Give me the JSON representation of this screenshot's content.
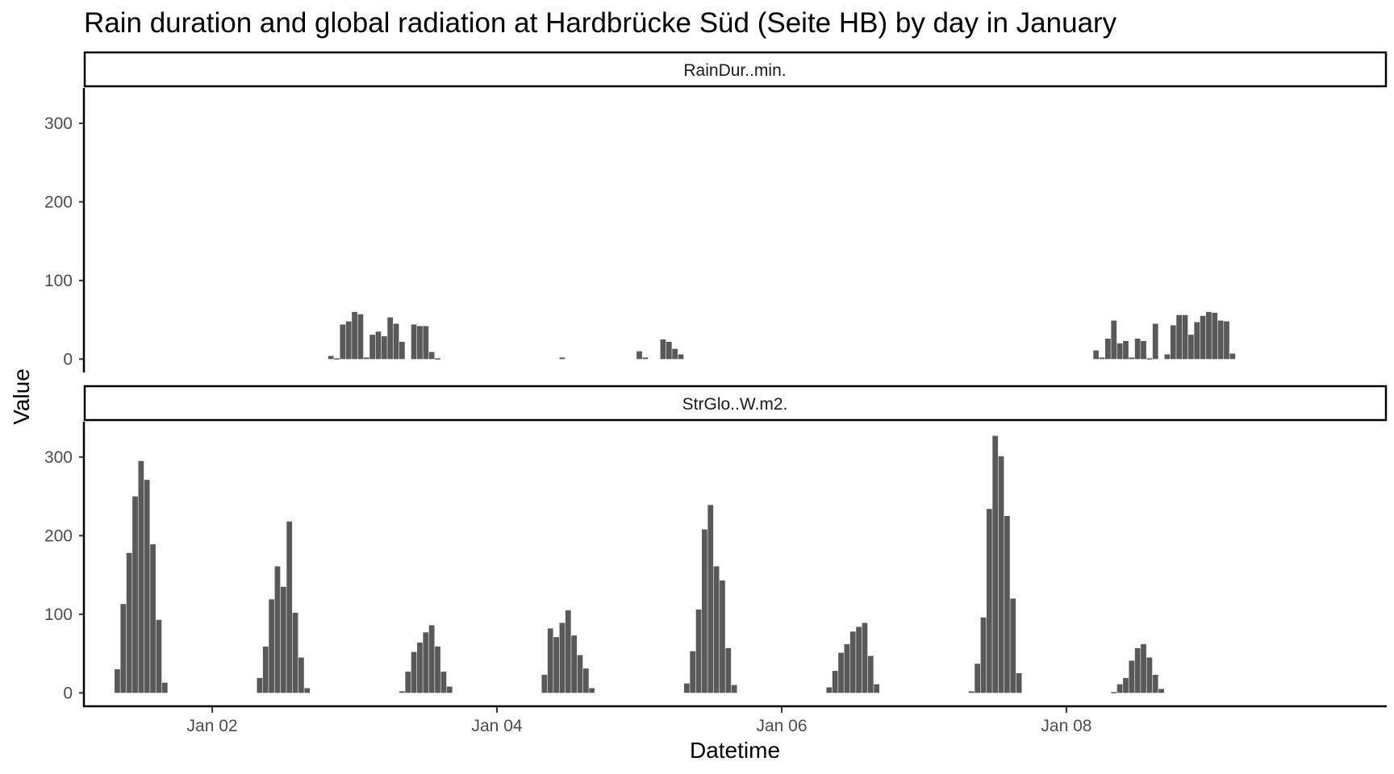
{
  "chart_data": {
    "type": "bar",
    "title": "Rain duration and global radiation at Hardbrücke Süd (Seite HB) by day in January",
    "xlabel": "Datetime",
    "ylabel": "Value",
    "x_ticks": [
      "Jan 02",
      "Jan 04",
      "Jan 06",
      "Jan 08"
    ],
    "y_ticks": [
      0,
      100,
      200,
      300
    ],
    "ylim": [
      -15,
      345
    ],
    "xlim": [
      "2024-01-01T02:30",
      "2024-01-10T06:00"
    ],
    "grid": false,
    "legend": "none",
    "bar_color": "#595959",
    "panels": [
      {
        "strip": "RainDur..min.",
        "series": [
          {
            "x": [
              "2024-01-02T20:00",
              "2024-01-02T21:00",
              "2024-01-02T22:00",
              "2024-01-02T23:00",
              "2024-01-03T00:00",
              "2024-01-03T01:00",
              "2024-01-03T02:00",
              "2024-01-03T03:00",
              "2024-01-03T04:00",
              "2024-01-03T05:00",
              "2024-01-03T06:00",
              "2024-01-03T07:00",
              "2024-01-03T08:00",
              "2024-01-03T10:00",
              "2024-01-03T11:00",
              "2024-01-03T12:00",
              "2024-01-03T13:00",
              "2024-01-03T14:00",
              "2024-01-04T11:00",
              "2024-01-05T00:00",
              "2024-01-05T01:00",
              "2024-01-05T04:00",
              "2024-01-05T05:00",
              "2024-01-05T06:00",
              "2024-01-05T07:00",
              "2024-01-08T05:00",
              "2024-01-08T06:00",
              "2024-01-08T07:00",
              "2024-01-08T08:00",
              "2024-01-08T09:00",
              "2024-01-08T10:00",
              "2024-01-08T11:00",
              "2024-01-08T12:00",
              "2024-01-08T13:00",
              "2024-01-08T14:00",
              "2024-01-08T15:00",
              "2024-01-08T17:00",
              "2024-01-08T18:00",
              "2024-01-08T19:00",
              "2024-01-08T20:00",
              "2024-01-08T21:00",
              "2024-01-08T22:00",
              "2024-01-08T23:00",
              "2024-01-09T00:00",
              "2024-01-09T01:00",
              "2024-01-09T02:00",
              "2024-01-09T03:00",
              "2024-01-09T04:00"
            ],
            "values": [
              4,
              1,
              44,
              48,
              60,
              57,
              2,
              31,
              35,
              29,
              53,
              45,
              22,
              44,
              42,
              42,
              9,
              1,
              2,
              10,
              2,
              25,
              22,
              13,
              6,
              11,
              2,
              26,
              49,
              20,
              23,
              2,
              26,
              23,
              1,
              45,
              6,
              43,
              56,
              56,
              31,
              47,
              55,
              60,
              59,
              49,
              48,
              7
            ]
          }
        ]
      },
      {
        "strip": "StrGlo..W.m2.",
        "series": [
          {
            "x": [
              "2024-01-01T08:00",
              "2024-01-01T09:00",
              "2024-01-01T10:00",
              "2024-01-01T11:00",
              "2024-01-01T12:00",
              "2024-01-01T13:00",
              "2024-01-01T14:00",
              "2024-01-01T15:00",
              "2024-01-01T16:00",
              "2024-01-02T08:00",
              "2024-01-02T09:00",
              "2024-01-02T10:00",
              "2024-01-02T11:00",
              "2024-01-02T12:00",
              "2024-01-02T13:00",
              "2024-01-02T14:00",
              "2024-01-02T15:00",
              "2024-01-02T16:00",
              "2024-01-03T08:00",
              "2024-01-03T09:00",
              "2024-01-03T10:00",
              "2024-01-03T11:00",
              "2024-01-03T12:00",
              "2024-01-03T13:00",
              "2024-01-03T14:00",
              "2024-01-03T15:00",
              "2024-01-03T16:00",
              "2024-01-04T08:00",
              "2024-01-04T09:00",
              "2024-01-04T10:00",
              "2024-01-04T11:00",
              "2024-01-04T12:00",
              "2024-01-04T13:00",
              "2024-01-04T14:00",
              "2024-01-04T15:00",
              "2024-01-04T16:00",
              "2024-01-05T08:00",
              "2024-01-05T09:00",
              "2024-01-05T10:00",
              "2024-01-05T11:00",
              "2024-01-05T12:00",
              "2024-01-05T13:00",
              "2024-01-05T14:00",
              "2024-01-05T15:00",
              "2024-01-05T16:00",
              "2024-01-06T08:00",
              "2024-01-06T09:00",
              "2024-01-06T10:00",
              "2024-01-06T11:00",
              "2024-01-06T12:00",
              "2024-01-06T13:00",
              "2024-01-06T14:00",
              "2024-01-06T15:00",
              "2024-01-06T16:00",
              "2024-01-07T08:00",
              "2024-01-07T09:00",
              "2024-01-07T10:00",
              "2024-01-07T11:00",
              "2024-01-07T12:00",
              "2024-01-07T13:00",
              "2024-01-07T14:00",
              "2024-01-07T15:00",
              "2024-01-07T16:00",
              "2024-01-08T08:00",
              "2024-01-08T09:00",
              "2024-01-08T10:00",
              "2024-01-08T11:00",
              "2024-01-08T12:00",
              "2024-01-08T13:00",
              "2024-01-08T14:00",
              "2024-01-08T15:00",
              "2024-01-08T16:00"
            ],
            "values": [
              30,
              113,
              178,
              250,
              295,
              271,
              189,
              93,
              13,
              19,
              59,
              119,
              161,
              135,
              218,
              102,
              45,
              6,
              2,
              27,
              52,
              64,
              77,
              86,
              59,
              27,
              8,
              23,
              82,
              71,
              89,
              105,
              73,
              48,
              31,
              6,
              12,
              53,
              106,
              208,
              239,
              161,
              143,
              57,
              10,
              7,
              28,
              51,
              62,
              78,
              84,
              89,
              47,
              11,
              2,
              37,
              96,
              234,
              327,
              301,
              225,
              120,
              25,
              1,
              11,
              19,
              41,
              57,
              62,
              45,
              23,
              5
            ]
          }
        ]
      }
    ]
  }
}
